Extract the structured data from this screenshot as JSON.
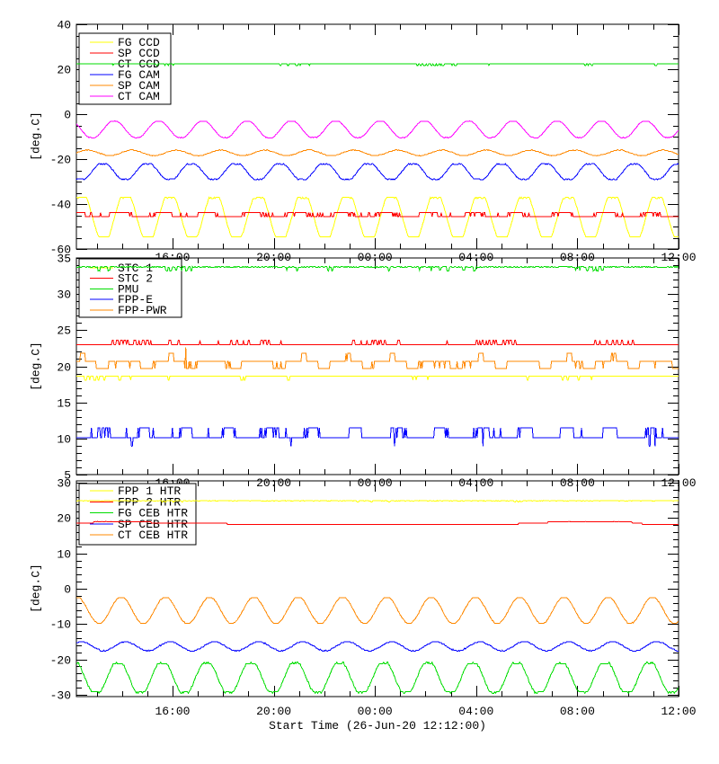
{
  "figure": {
    "background": "#ffffff",
    "axis_color": "#000000"
  },
  "x_axis": {
    "title": "Start Time (26-Jun-20 12:12:00)",
    "start_hour": 12.2,
    "end_hour": 36.0,
    "major_ticks": [
      {
        "hour": 16,
        "label": "16:00"
      },
      {
        "hour": 20,
        "label": "20:00"
      },
      {
        "hour": 24,
        "label": "00:00"
      },
      {
        "hour": 28,
        "label": "04:00"
      },
      {
        "hour": 32,
        "label": "08:00"
      },
      {
        "hour": 36,
        "label": "12:00"
      }
    ],
    "minor_tick_every_h": 1
  },
  "chart_data": [
    {
      "type": "line",
      "ylabel": "[deg.C]",
      "ylim": [
        -60,
        40
      ],
      "yticks": [
        40,
        20,
        0,
        -20,
        -40,
        -60
      ],
      "ytick_minor": 5,
      "legend_position": "top-left",
      "series": [
        {
          "name": "FG CCD",
          "color": "#ffff00",
          "waveform": "sine",
          "mean": -45.8,
          "amplitude": 8.6,
          "clip": 1.35,
          "period_h": 1.75,
          "peak_h": 21.15,
          "quant": 0.5,
          "noise": 0.12
        },
        {
          "name": "SP CCD",
          "color": "#ff0000",
          "waveform": "square",
          "low": -45.6,
          "high": -43.8,
          "duty": 0.45,
          "period_h": 1.75,
          "on_h": 20.5,
          "quant": 0.6,
          "toggle_p": 0.05
        },
        {
          "name": "CT CCD",
          "color": "#00dd00",
          "waveform": "flat",
          "mean": 22.4,
          "blip_amp": -0.7,
          "blip_p": 0.02,
          "burst_period_h": 5.5,
          "noise": 0.04
        },
        {
          "name": "FG CAM",
          "color": "#0000ff",
          "waveform": "sine",
          "mean": -25.6,
          "amplitude": 3.4,
          "clip": 1.2,
          "period_h": 1.75,
          "peak_h": 22.0,
          "quant": 0.4,
          "noise": 0.18
        },
        {
          "name": "SP CAM",
          "color": "#ff8800",
          "waveform": "sine",
          "mean": -17.2,
          "amplitude": 1.2,
          "clip": 1.0,
          "period_h": 1.75,
          "peak_h": 21.4,
          "quant": 0.3,
          "noise": 0.1
        },
        {
          "name": "CT CAM",
          "color": "#ff00ff",
          "waveform": "sine",
          "mean": -6.8,
          "amplitude": 3.6,
          "clip": 1.1,
          "period_h": 1.75,
          "peak_h": 20.7,
          "quant": 0.25,
          "noise": 0.08
        }
      ]
    },
    {
      "type": "line",
      "ylabel": "[deg.C]",
      "ylim": [
        5,
        35
      ],
      "yticks": [
        35,
        30,
        25,
        20,
        15,
        10,
        5
      ],
      "ytick_minor": 1,
      "legend_position": "top-left",
      "series": [
        {
          "name": "STC 1",
          "color": "#ffff00",
          "waveform": "flat",
          "mean": 18.6,
          "blip_amp": -0.5,
          "blip_p": 0.015,
          "burst_period_h": 6.2,
          "noise": 0.03
        },
        {
          "name": "STC 2",
          "color": "#ff0000",
          "waveform": "flat",
          "mean": 23.0,
          "blip_amp": 0.6,
          "blip_p": 0.05,
          "burst_period_h": 4.8,
          "noise": 0.03
        },
        {
          "name": "PMU",
          "color": "#00dd00",
          "waveform": "flat",
          "mean": 33.75,
          "blip_amp": -0.5,
          "blip_p": 0.03,
          "burst_period_h": 5.6,
          "noise": 0.03
        },
        {
          "name": "FPP-E",
          "color": "#0000ff",
          "waveform": "square",
          "low": 10.1,
          "high": 11.5,
          "duty": 0.32,
          "period_h": 1.67,
          "on_h": 12.95,
          "dip": 8.9,
          "dip_p": 0.008,
          "toggle_p": 0.03
        },
        {
          "name": "FPP-PWR",
          "color": "#ff8800",
          "waveform": "square3",
          "mid": 20.7,
          "low": 19.7,
          "high": 21.8,
          "low_frac": [
            0.45,
            0.72
          ],
          "high_frac": [
            0.08,
            0.2
          ],
          "high_cycle_p": 0.55,
          "period_h": 1.75,
          "on_h": 12.2,
          "spike": 22.6,
          "spike_p": 0.004,
          "toggle_p": 0.04
        }
      ]
    },
    {
      "type": "line",
      "ylabel": "[deg.C]",
      "ylim": [
        -30.54,
        30.54
      ],
      "yticks": [
        30,
        20,
        10,
        0,
        -10,
        -20,
        -30
      ],
      "ytick_minor": 2,
      "legend_position": "top-left",
      "series": [
        {
          "name": "FPP 1 HTR",
          "color": "#ffff00",
          "waveform": "flat",
          "mean": 24.9,
          "blip_amp": -0.3,
          "blip_p": 0.01,
          "burst_period_h": 7.0,
          "noise": 0.08
        },
        {
          "name": "FPP 2 HTR",
          "color": "#ff0000",
          "waveform": "steps",
          "mean": 18.6,
          "step": 0.4
        },
        {
          "name": "FG CEB HTR",
          "color": "#00dd00",
          "waveform": "sine",
          "mean": -25.2,
          "amplitude": 4.1,
          "clip": 1.2,
          "period_h": 1.75,
          "peak_h": 20.85,
          "quant": 0.4,
          "noise": 0.16
        },
        {
          "name": "SP CEB HTR",
          "color": "#0000ff",
          "waveform": "sine",
          "mean": -16.3,
          "amplitude": 1.3,
          "clip": 1.0,
          "period_h": 1.75,
          "peak_h": 21.15,
          "quant": 0.3,
          "noise": 0.1
        },
        {
          "name": "CT CEB HTR",
          "color": "#ff8800",
          "waveform": "sine",
          "mean": -6.1,
          "amplitude": 3.6,
          "clip": 1.05,
          "period_h": 1.75,
          "peak_h": 20.97,
          "quant": 0.25,
          "noise": 0.08
        }
      ]
    }
  ]
}
